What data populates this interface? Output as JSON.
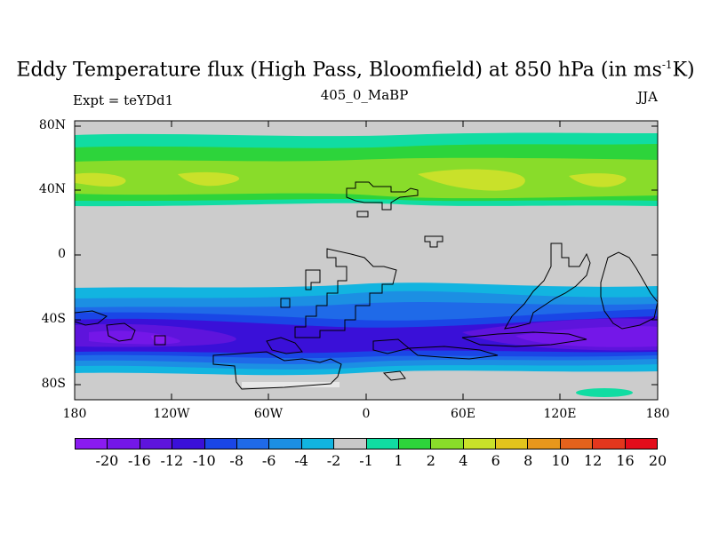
{
  "title": {
    "main": "Eddy Temperature flux (High Pass, Bloomfield) at 850 hPa (in ms",
    "sup": "-1",
    "end": "K)"
  },
  "subtitle": "405_0_MaBP",
  "experiment": "Expt = teYDd1",
  "season": "JJA",
  "axes": {
    "y_ticks": [
      "80N",
      "40N",
      "0",
      "40S",
      "80S"
    ],
    "x_ticks": [
      "180",
      "120W",
      "60W",
      "0",
      "60E",
      "120E",
      "180"
    ],
    "lat_range": [
      -90,
      90
    ],
    "lon_range": [
      -180,
      180
    ]
  },
  "colorbar": {
    "colors": [
      "#8a1bf0",
      "#7417e8",
      "#5e14dc",
      "#3a10d8",
      "#1a46e6",
      "#1f6ae8",
      "#1c8fe3",
      "#12b4e0",
      "#c8c8c8",
      "#11dca2",
      "#2dd43b",
      "#89dc2a",
      "#c9e12a",
      "#e3c41c",
      "#e8971c",
      "#e4621c",
      "#e3371d",
      "#e30d1b"
    ],
    "labels": [
      "-20",
      "-16",
      "-12",
      "-10",
      "-8",
      "-6",
      "-4",
      "-2",
      "-1",
      "1",
      "2",
      "4",
      "6",
      "8",
      "10",
      "12",
      "16",
      "20"
    ],
    "zero_color": "#cccccc"
  }
}
